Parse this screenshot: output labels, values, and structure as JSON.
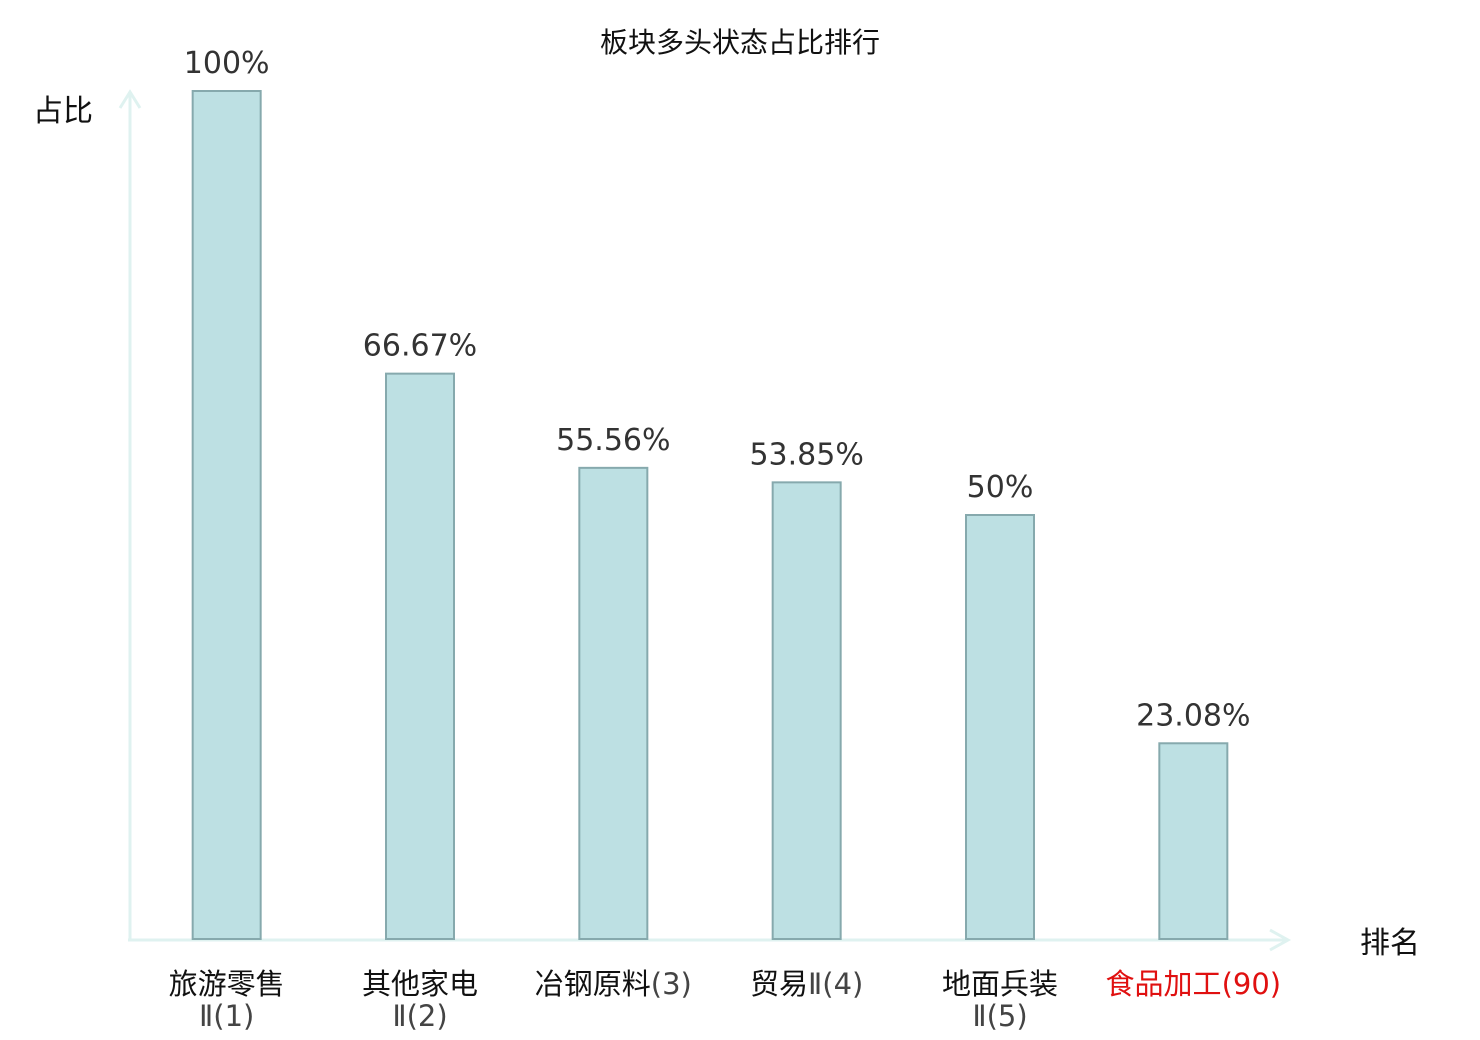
{
  "chart_data": {
    "type": "bar",
    "title": "板块多头状态占比排行",
    "ylabel": "占比",
    "xlabel": "排名",
    "ylim": [
      0,
      100
    ],
    "categories": [
      {
        "name": "旅游零售",
        "rank_label": "Ⅱ(1)",
        "highlight": false
      },
      {
        "name": "其他家电",
        "rank_label": "Ⅱ(2)",
        "highlight": false
      },
      {
        "name": "冶钢原料",
        "rank_label": "(3)",
        "highlight": false
      },
      {
        "name": "贸易",
        "rank_label": "Ⅱ(4)",
        "highlight": false
      },
      {
        "name": "地面兵装",
        "rank_label": "Ⅱ(5)",
        "highlight": false
      },
      {
        "name": "食品加工",
        "rank_label": "(90)",
        "highlight": true
      }
    ],
    "values": [
      100,
      66.67,
      55.56,
      53.85,
      50,
      23.08
    ],
    "value_labels": [
      "100%",
      "66.67%",
      "55.56%",
      "53.85%",
      "50%",
      "23.08%"
    ],
    "grid": false,
    "legend": "none"
  },
  "colors": {
    "bar_fill": "#bde0e3",
    "bar_stroke": "#86a9ad",
    "axis": "#dff2f0",
    "label_text": "#111111",
    "rank_text": "#444444",
    "value_text": "#333333",
    "highlight": "#e01010"
  }
}
